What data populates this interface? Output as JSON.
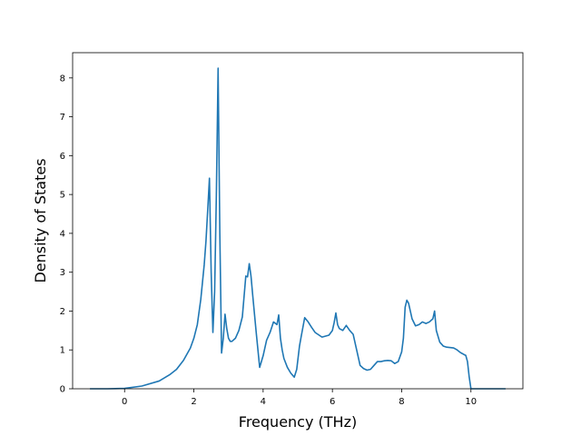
{
  "chart_data": {
    "type": "line",
    "title": "",
    "xlabel": "Frequency (THz)",
    "ylabel": "Density of States",
    "xlim": [
      -1.5,
      11.5
    ],
    "ylim": [
      0,
      8.65
    ],
    "xticks": [
      0,
      2,
      4,
      6,
      8,
      10
    ],
    "yticks": [
      0,
      1,
      2,
      3,
      4,
      5,
      6,
      7,
      8
    ],
    "grid": false,
    "legend": "none",
    "line_color": "#1f77b4",
    "series": [
      {
        "x": [
          -1.0,
          -0.5,
          0.0,
          0.5,
          1.0,
          1.3,
          1.5,
          1.7,
          1.9,
          2.0,
          2.1,
          2.2,
          2.3,
          2.35,
          2.4,
          2.45,
          2.5,
          2.55,
          2.6,
          2.65,
          2.7,
          2.75,
          2.8,
          2.85,
          2.9,
          2.95,
          3.0,
          3.05,
          3.1,
          3.2,
          3.3,
          3.4,
          3.5,
          3.55,
          3.6,
          3.65,
          3.7,
          3.8,
          3.9,
          4.0,
          4.1,
          4.2,
          4.3,
          4.4,
          4.45,
          4.5,
          4.55,
          4.6,
          4.7,
          4.8,
          4.9,
          4.97,
          5.05,
          5.1,
          5.2,
          5.3,
          5.4,
          5.5,
          5.7,
          5.9,
          6.0,
          6.05,
          6.1,
          6.15,
          6.2,
          6.3,
          6.4,
          6.5,
          6.6,
          6.7,
          6.8,
          6.9,
          7.0,
          7.1,
          7.2,
          7.3,
          7.4,
          7.5,
          7.6,
          7.7,
          7.8,
          7.9,
          8.0,
          8.05,
          8.1,
          8.15,
          8.2,
          8.3,
          8.4,
          8.5,
          8.6,
          8.7,
          8.8,
          8.9,
          8.95,
          9.0,
          9.1,
          9.2,
          9.3,
          9.5,
          9.6,
          9.7,
          9.8,
          9.85,
          9.9,
          9.95,
          10.0,
          10.1,
          10.5,
          11.0
        ],
        "y": [
          0.0,
          0.0,
          0.01,
          0.07,
          0.2,
          0.36,
          0.5,
          0.73,
          1.05,
          1.3,
          1.65,
          2.3,
          3.2,
          3.8,
          4.6,
          5.42,
          3.0,
          1.45,
          2.5,
          5.0,
          8.25,
          4.0,
          0.92,
          1.3,
          1.92,
          1.55,
          1.3,
          1.22,
          1.22,
          1.3,
          1.5,
          1.85,
          2.9,
          2.88,
          3.22,
          2.9,
          2.4,
          1.45,
          0.55,
          0.85,
          1.25,
          1.45,
          1.72,
          1.65,
          1.9,
          1.3,
          1.0,
          0.78,
          0.55,
          0.4,
          0.3,
          0.5,
          1.1,
          1.35,
          1.83,
          1.72,
          1.58,
          1.45,
          1.33,
          1.38,
          1.5,
          1.7,
          1.95,
          1.65,
          1.55,
          1.5,
          1.63,
          1.5,
          1.4,
          1.0,
          0.6,
          0.52,
          0.48,
          0.5,
          0.6,
          0.7,
          0.7,
          0.72,
          0.73,
          0.72,
          0.65,
          0.7,
          0.95,
          1.3,
          2.1,
          2.28,
          2.2,
          1.8,
          1.62,
          1.65,
          1.72,
          1.68,
          1.72,
          1.8,
          2.0,
          1.5,
          1.2,
          1.1,
          1.07,
          1.05,
          1.0,
          0.93,
          0.88,
          0.86,
          0.7,
          0.3,
          0.0,
          0.0,
          0.0,
          0.0
        ]
      }
    ]
  }
}
